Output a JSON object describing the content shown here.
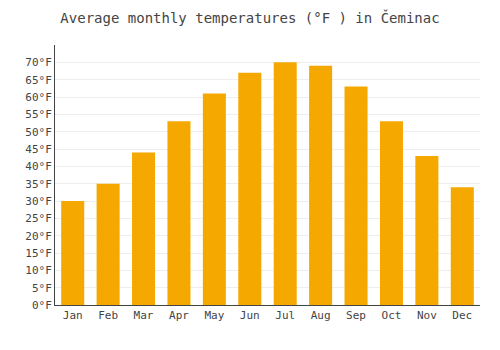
{
  "chart_data": {
    "type": "bar",
    "title": "Average monthly temperatures (°F ) in Čeminac",
    "categories": [
      "Jan",
      "Feb",
      "Mar",
      "Apr",
      "May",
      "Jun",
      "Jul",
      "Aug",
      "Sep",
      "Oct",
      "Nov",
      "Dec"
    ],
    "values": [
      30,
      35,
      44,
      53,
      61,
      67,
      70,
      69,
      63,
      53,
      43,
      34
    ],
    "color": "#F5A800",
    "ylim": [
      0,
      75
    ],
    "yticks": [
      {
        "value": 0,
        "label": "0°F"
      },
      {
        "value": 5,
        "label": "5°F"
      },
      {
        "value": 10,
        "label": "10°F"
      },
      {
        "value": 15,
        "label": "15°F"
      },
      {
        "value": 20,
        "label": "20°F"
      },
      {
        "value": 25,
        "label": "25°F"
      },
      {
        "value": 30,
        "label": "30°F"
      },
      {
        "value": 35,
        "label": "35°F"
      },
      {
        "value": 40,
        "label": "40°F"
      },
      {
        "value": 45,
        "label": "45°F"
      },
      {
        "value": 50,
        "label": "50°F"
      },
      {
        "value": 55,
        "label": "55°F"
      },
      {
        "value": 60,
        "label": "60°F"
      },
      {
        "value": 65,
        "label": "65°F"
      },
      {
        "value": 70,
        "label": "70°F"
      }
    ],
    "grid": true
  }
}
